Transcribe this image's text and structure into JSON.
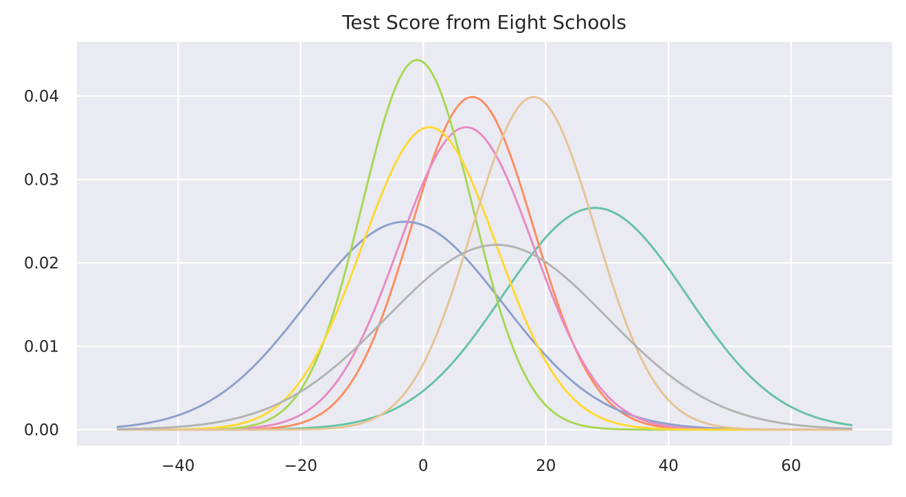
{
  "chart_data": {
    "type": "line",
    "title": "Test Score from Eight Schools",
    "xlabel": "",
    "ylabel": "",
    "xlim": [
      -56.5,
      76.5
    ],
    "ylim": [
      -0.0019,
      0.0465
    ],
    "xticks": [
      -40,
      -20,
      0,
      20,
      40,
      60
    ],
    "xtick_labels": [
      "−40",
      "−20",
      "0",
      "20",
      "40",
      "60"
    ],
    "yticks": [
      0.0,
      0.01,
      0.02,
      0.03,
      0.04
    ],
    "ytick_labels": [
      "0.00",
      "0.01",
      "0.02",
      "0.03",
      "0.04"
    ],
    "grid": true,
    "legend": "none",
    "x_range": [
      -50,
      70
    ],
    "curve": "normal density",
    "series": [
      {
        "mean": 28,
        "sd": 15,
        "color": "#66c2a5"
      },
      {
        "mean": 8,
        "sd": 10,
        "color": "#fc8d62"
      },
      {
        "mean": -3,
        "sd": 16,
        "color": "#8da0cb"
      },
      {
        "mean": 7,
        "sd": 11,
        "color": "#e78ac3"
      },
      {
        "mean": -1,
        "sd": 9,
        "color": "#a6d854"
      },
      {
        "mean": 1,
        "sd": 11,
        "color": "#ffd92f"
      },
      {
        "mean": 18,
        "sd": 10,
        "color": "#e5c494"
      },
      {
        "mean": 12,
        "sd": 18,
        "color": "#b3b3b3"
      }
    ],
    "colors": {
      "background": "#eaeaf2",
      "grid": "#ffffff",
      "text": "#262626"
    }
  }
}
